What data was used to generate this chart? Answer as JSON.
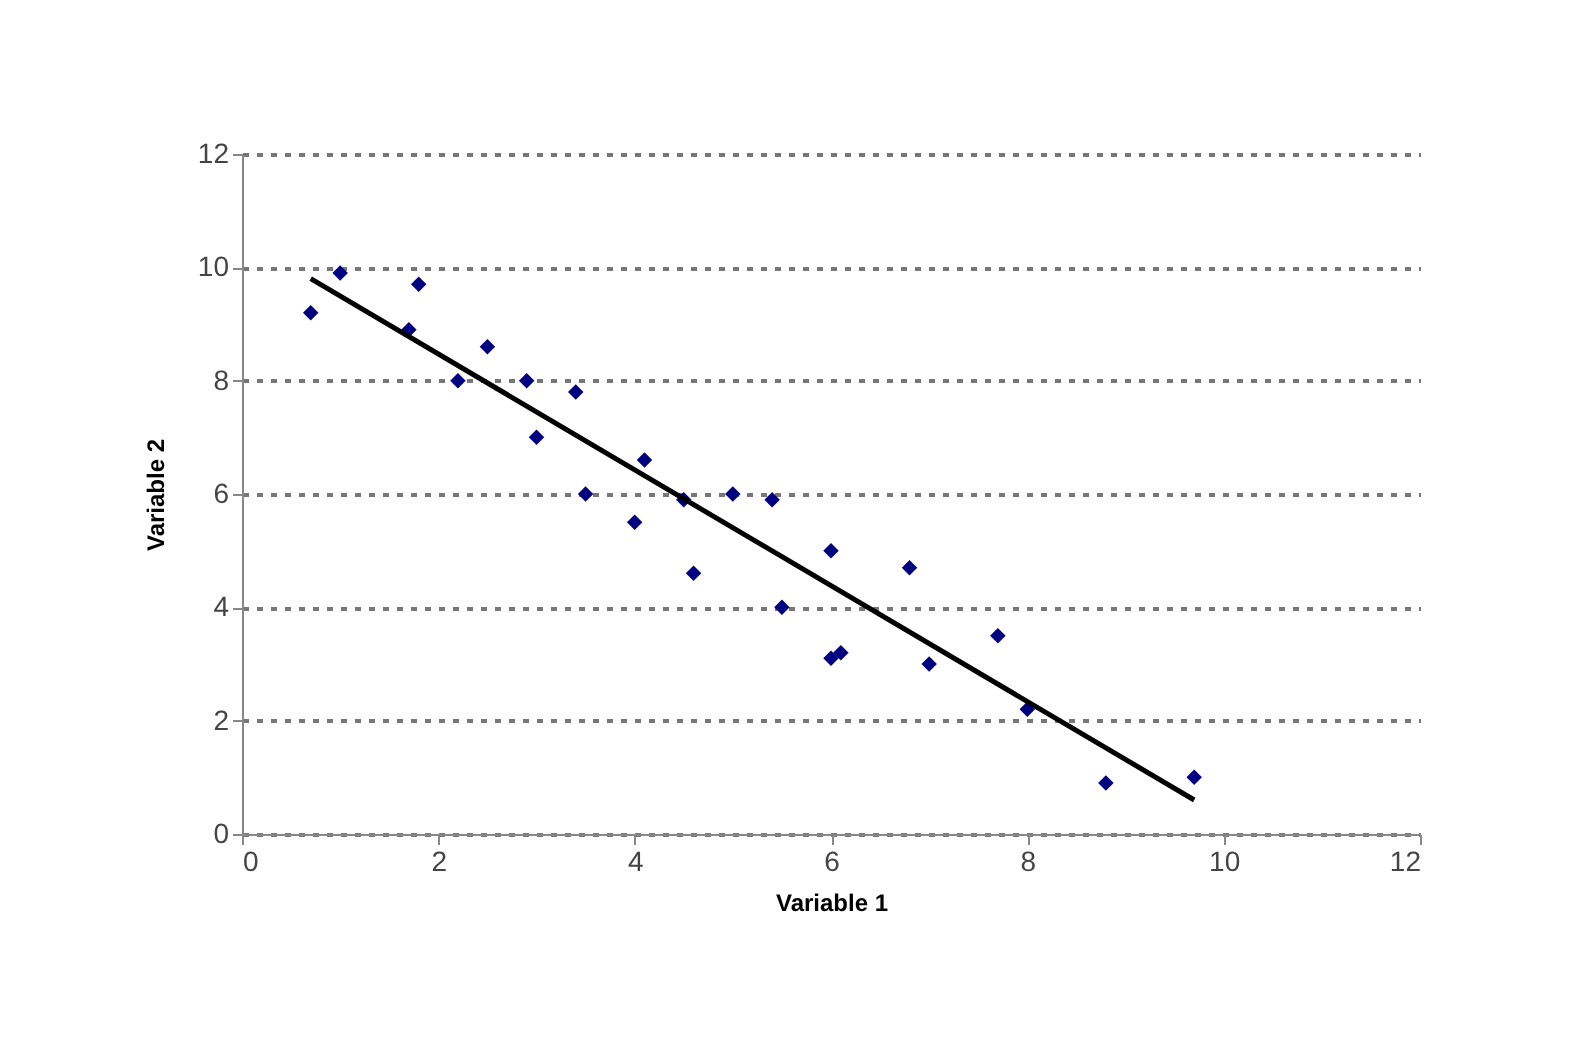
{
  "chart_data": {
    "type": "scatter",
    "xlabel": "Variable 1",
    "ylabel": "Variable 2",
    "xlim": [
      0,
      12
    ],
    "ylim": [
      0,
      12
    ],
    "xticks": [
      0,
      2,
      4,
      6,
      8,
      10,
      12
    ],
    "yticks": [
      0,
      2,
      4,
      6,
      8,
      10,
      12
    ],
    "grid": "y",
    "series": [
      {
        "marker": "diamond",
        "color": "#000080",
        "x": [
          0.7,
          1.0,
          1.8,
          1.7,
          2.2,
          2.5,
          2.9,
          3.0,
          3.4,
          3.5,
          4.1,
          4.0,
          4.5,
          4.6,
          5.0,
          5.4,
          5.5,
          6.0,
          6.0,
          6.1,
          6.8,
          7.0,
          7.7,
          8.0,
          8.8,
          9.7
        ],
        "values": [
          9.2,
          9.9,
          9.7,
          8.9,
          8.0,
          8.6,
          8.0,
          7.0,
          7.8,
          6.0,
          6.6,
          5.5,
          5.9,
          4.6,
          6.0,
          5.9,
          4.0,
          5.0,
          3.1,
          3.2,
          4.7,
          3.0,
          3.5,
          2.2,
          0.9,
          1.0
        ]
      },
      {
        "type": "line",
        "color": "#000000",
        "x": [
          0.7,
          9.7
        ],
        "values": [
          9.8,
          0.6
        ]
      }
    ]
  }
}
